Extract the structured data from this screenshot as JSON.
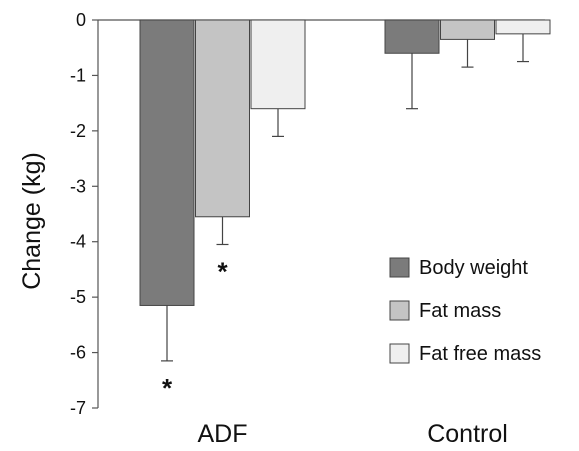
{
  "chart_data": {
    "type": "bar",
    "title": "",
    "xlabel": "",
    "ylabel": "Change (kg)",
    "ylim": [
      -7,
      0
    ],
    "yticks": [
      0,
      -1,
      -2,
      -3,
      -4,
      -5,
      -6,
      -7
    ],
    "grid": false,
    "legend_position": "bottom-right",
    "categories": [
      "ADF",
      "Control"
    ],
    "series": [
      {
        "name": "Body weight",
        "color": "#7b7b7b",
        "values": [
          -5.15,
          -0.6
        ],
        "error": [
          1.0,
          1.0
        ]
      },
      {
        "name": "Fat mass",
        "color": "#c4c4c4",
        "values": [
          -3.55,
          -0.35
        ],
        "error": [
          0.5,
          0.5
        ]
      },
      {
        "name": "Fat free mass",
        "color": "#efefef",
        "values": [
          -1.6,
          -0.25
        ],
        "error": [
          0.5,
          0.5
        ]
      }
    ],
    "annotations": [
      {
        "text": "*",
        "category": "ADF",
        "series": "Body weight"
      },
      {
        "text": "*",
        "category": "ADF",
        "series": "Fat mass"
      }
    ]
  }
}
